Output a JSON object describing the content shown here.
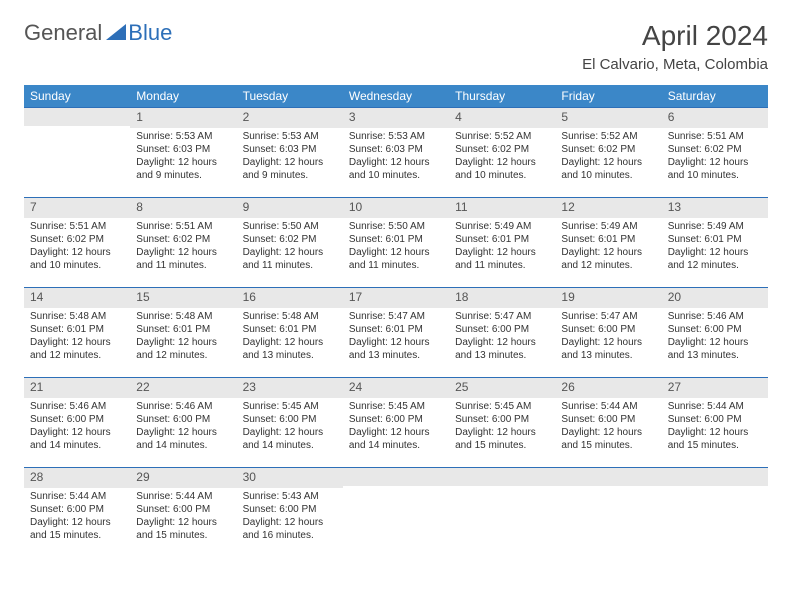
{
  "brand": {
    "part1": "General",
    "part2": "Blue"
  },
  "title": "April 2024",
  "location": "El Calvario, Meta, Colombia",
  "colors": {
    "header_bg": "#3b87c8",
    "header_text": "#ffffff",
    "daynum_bg": "#e8e8e8",
    "border": "#2d6fb8",
    "text": "#333333",
    "brand_gray": "#555555",
    "brand_blue": "#2d6fb8"
  },
  "fonts": {
    "title_size": 28,
    "location_size": 15,
    "header_size": 12,
    "daynum_size": 12,
    "body_size": 10
  },
  "weekdays": [
    "Sunday",
    "Monday",
    "Tuesday",
    "Wednesday",
    "Thursday",
    "Friday",
    "Saturday"
  ],
  "first_weekday_index": 1,
  "days": [
    {
      "n": 1,
      "sunrise": "5:53 AM",
      "sunset": "6:03 PM",
      "daylight": "12 hours and 9 minutes."
    },
    {
      "n": 2,
      "sunrise": "5:53 AM",
      "sunset": "6:03 PM",
      "daylight": "12 hours and 9 minutes."
    },
    {
      "n": 3,
      "sunrise": "5:53 AM",
      "sunset": "6:03 PM",
      "daylight": "12 hours and 10 minutes."
    },
    {
      "n": 4,
      "sunrise": "5:52 AM",
      "sunset": "6:02 PM",
      "daylight": "12 hours and 10 minutes."
    },
    {
      "n": 5,
      "sunrise": "5:52 AM",
      "sunset": "6:02 PM",
      "daylight": "12 hours and 10 minutes."
    },
    {
      "n": 6,
      "sunrise": "5:51 AM",
      "sunset": "6:02 PM",
      "daylight": "12 hours and 10 minutes."
    },
    {
      "n": 7,
      "sunrise": "5:51 AM",
      "sunset": "6:02 PM",
      "daylight": "12 hours and 10 minutes."
    },
    {
      "n": 8,
      "sunrise": "5:51 AM",
      "sunset": "6:02 PM",
      "daylight": "12 hours and 11 minutes."
    },
    {
      "n": 9,
      "sunrise": "5:50 AM",
      "sunset": "6:02 PM",
      "daylight": "12 hours and 11 minutes."
    },
    {
      "n": 10,
      "sunrise": "5:50 AM",
      "sunset": "6:01 PM",
      "daylight": "12 hours and 11 minutes."
    },
    {
      "n": 11,
      "sunrise": "5:49 AM",
      "sunset": "6:01 PM",
      "daylight": "12 hours and 11 minutes."
    },
    {
      "n": 12,
      "sunrise": "5:49 AM",
      "sunset": "6:01 PM",
      "daylight": "12 hours and 12 minutes."
    },
    {
      "n": 13,
      "sunrise": "5:49 AM",
      "sunset": "6:01 PM",
      "daylight": "12 hours and 12 minutes."
    },
    {
      "n": 14,
      "sunrise": "5:48 AM",
      "sunset": "6:01 PM",
      "daylight": "12 hours and 12 minutes."
    },
    {
      "n": 15,
      "sunrise": "5:48 AM",
      "sunset": "6:01 PM",
      "daylight": "12 hours and 12 minutes."
    },
    {
      "n": 16,
      "sunrise": "5:48 AM",
      "sunset": "6:01 PM",
      "daylight": "12 hours and 13 minutes."
    },
    {
      "n": 17,
      "sunrise": "5:47 AM",
      "sunset": "6:01 PM",
      "daylight": "12 hours and 13 minutes."
    },
    {
      "n": 18,
      "sunrise": "5:47 AM",
      "sunset": "6:00 PM",
      "daylight": "12 hours and 13 minutes."
    },
    {
      "n": 19,
      "sunrise": "5:47 AM",
      "sunset": "6:00 PM",
      "daylight": "12 hours and 13 minutes."
    },
    {
      "n": 20,
      "sunrise": "5:46 AM",
      "sunset": "6:00 PM",
      "daylight": "12 hours and 13 minutes."
    },
    {
      "n": 21,
      "sunrise": "5:46 AM",
      "sunset": "6:00 PM",
      "daylight": "12 hours and 14 minutes."
    },
    {
      "n": 22,
      "sunrise": "5:46 AM",
      "sunset": "6:00 PM",
      "daylight": "12 hours and 14 minutes."
    },
    {
      "n": 23,
      "sunrise": "5:45 AM",
      "sunset": "6:00 PM",
      "daylight": "12 hours and 14 minutes."
    },
    {
      "n": 24,
      "sunrise": "5:45 AM",
      "sunset": "6:00 PM",
      "daylight": "12 hours and 14 minutes."
    },
    {
      "n": 25,
      "sunrise": "5:45 AM",
      "sunset": "6:00 PM",
      "daylight": "12 hours and 15 minutes."
    },
    {
      "n": 26,
      "sunrise": "5:44 AM",
      "sunset": "6:00 PM",
      "daylight": "12 hours and 15 minutes."
    },
    {
      "n": 27,
      "sunrise": "5:44 AM",
      "sunset": "6:00 PM",
      "daylight": "12 hours and 15 minutes."
    },
    {
      "n": 28,
      "sunrise": "5:44 AM",
      "sunset": "6:00 PM",
      "daylight": "12 hours and 15 minutes."
    },
    {
      "n": 29,
      "sunrise": "5:44 AM",
      "sunset": "6:00 PM",
      "daylight": "12 hours and 15 minutes."
    },
    {
      "n": 30,
      "sunrise": "5:43 AM",
      "sunset": "6:00 PM",
      "daylight": "12 hours and 16 minutes."
    }
  ],
  "labels": {
    "sunrise": "Sunrise:",
    "sunset": "Sunset:",
    "daylight": "Daylight:"
  }
}
